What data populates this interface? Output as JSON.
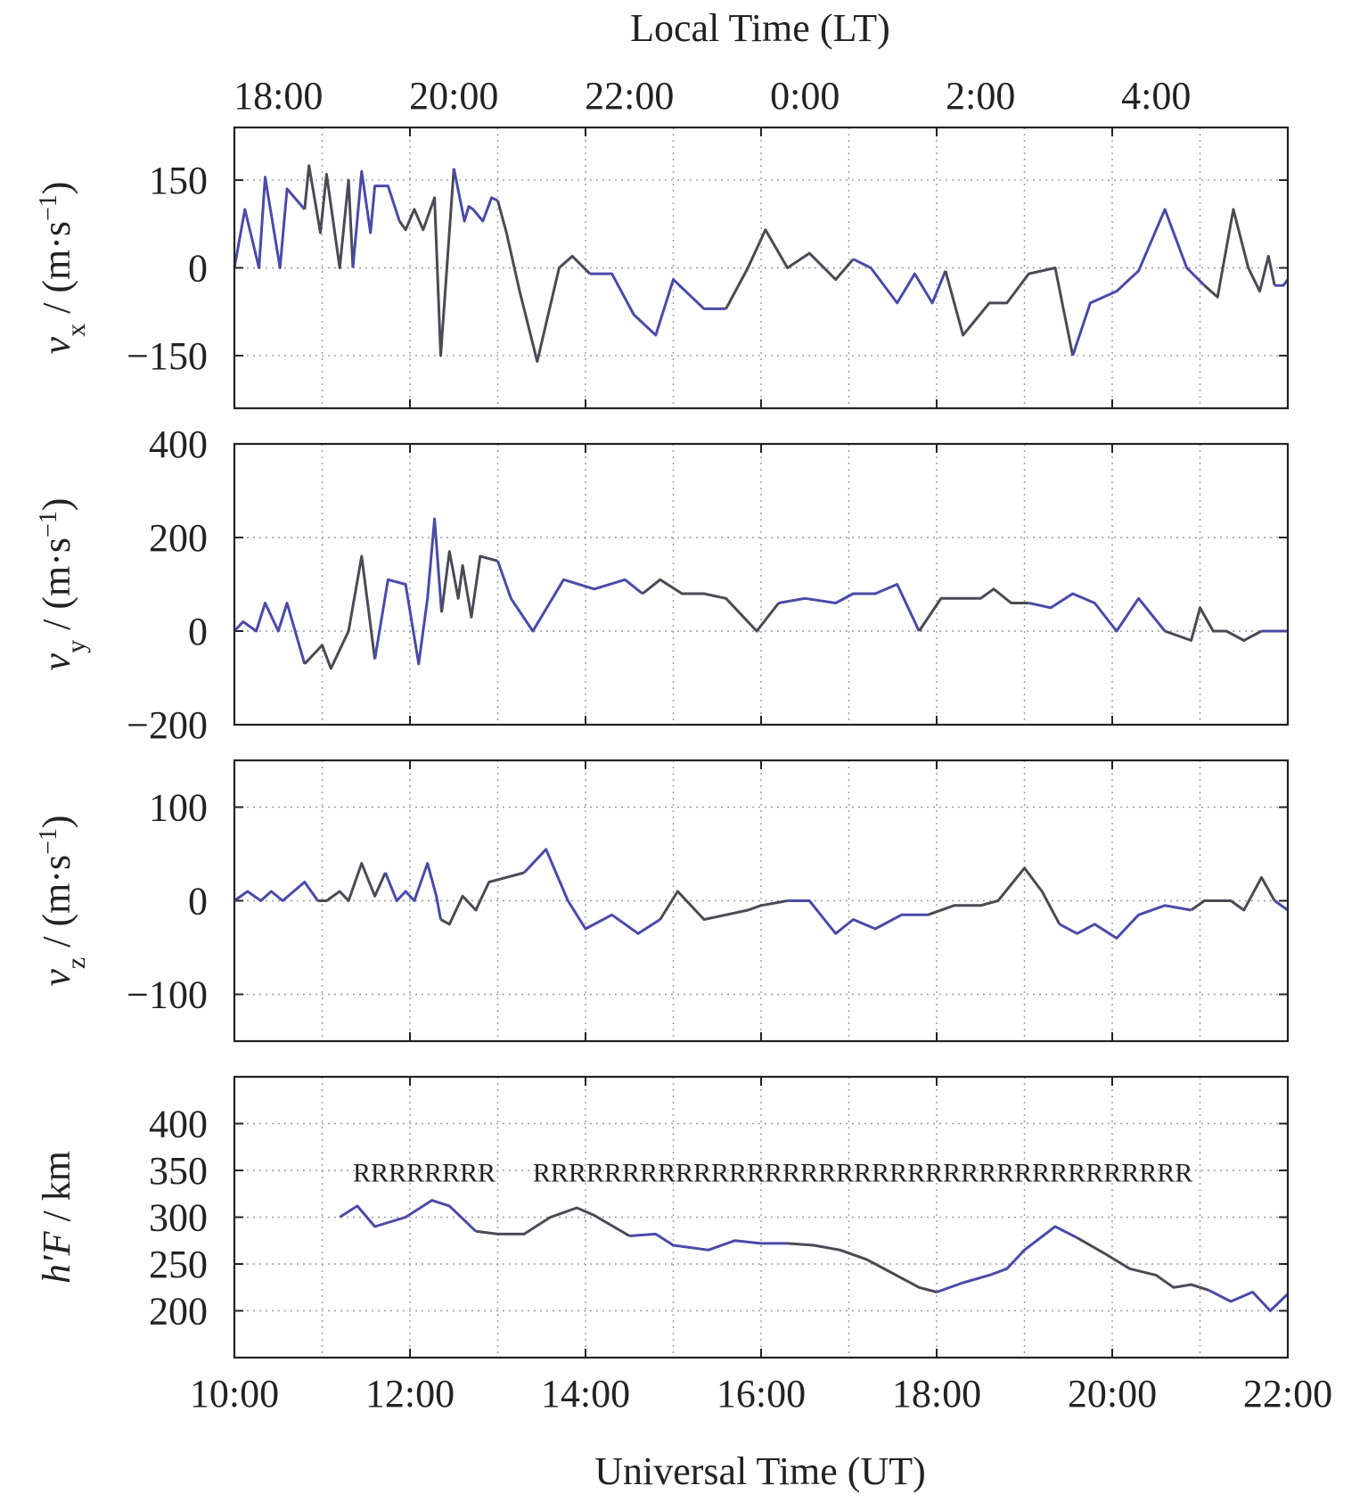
{
  "chart_data": {
    "type": "line",
    "top_axis_title": "Local Time (LT)",
    "top_tick_labels": [
      "18:00",
      "20:00",
      "22:00",
      "0:00",
      "2:00",
      "4:00"
    ],
    "bottom_axis_title": "Universal Time (UT)",
    "bottom_tick_labels": [
      "10:00",
      "12:00",
      "14:00",
      "16:00",
      "18:00",
      "20:00",
      "22:00"
    ],
    "xlim": [
      10,
      22
    ],
    "grid": true,
    "line_colors": [
      "#4a4aa8",
      "#4a4a55"
    ],
    "panels": [
      {
        "id": "vx",
        "ylabel_var": "v",
        "ylabel_sub": "x",
        "ylabel_units_pre": " / (m·s",
        "ylabel_units_sup": "−1",
        "ylabel_units_post": ")",
        "ylim": [
          -240,
          240
        ],
        "yticks": [
          -150,
          0,
          150
        ],
        "ytick_labels": [
          "−150",
          "0",
          "150"
        ],
        "x": [
          10.0,
          10.12,
          10.28,
          10.35,
          10.52,
          10.6,
          10.8,
          10.85,
          10.98,
          11.05,
          11.2,
          11.3,
          11.35,
          11.45,
          11.55,
          11.6,
          11.7,
          11.75,
          11.88,
          11.95,
          12.05,
          12.15,
          12.28,
          12.35,
          12.5,
          12.62,
          12.67,
          12.72,
          12.83,
          12.93,
          13.0,
          13.1,
          13.25,
          13.45,
          13.7,
          13.85,
          14.05,
          14.3,
          14.55,
          14.8,
          15.0,
          15.35,
          15.6,
          15.85,
          16.05,
          16.3,
          16.55,
          16.85,
          17.05,
          17.25,
          17.35,
          17.55,
          17.75,
          17.95,
          18.1,
          18.3,
          18.6,
          18.8,
          19.05,
          19.35,
          19.55,
          19.75,
          20.05,
          20.3,
          20.6,
          20.85,
          21.05,
          21.2,
          21.38,
          21.55,
          21.68,
          21.78,
          21.85,
          21.95,
          22.0
        ],
        "y": [
          0,
          100,
          0,
          155,
          0,
          135,
          100,
          175,
          60,
          160,
          0,
          150,
          0,
          165,
          60,
          140,
          140,
          140,
          80,
          65,
          100,
          65,
          120,
          -150,
          170,
          80,
          105,
          100,
          80,
          120,
          115,
          60,
          -40,
          -160,
          0,
          20,
          -10,
          -10,
          -80,
          -115,
          -20,
          -70,
          -70,
          0,
          65,
          0,
          25,
          -20,
          15,
          0,
          -20,
          -60,
          -10,
          -60,
          -5,
          -115,
          -60,
          -60,
          -10,
          0,
          -150,
          -60,
          -40,
          -5,
          100,
          0,
          -30,
          -50,
          100,
          0,
          -40,
          20,
          -30,
          -30,
          -20
        ]
      },
      {
        "id": "vy",
        "ylabel_var": "v",
        "ylabel_sub": "y",
        "ylabel_units_pre": " / (m·s",
        "ylabel_units_sup": "−1",
        "ylabel_units_post": ")",
        "ylim": [
          -200,
          400
        ],
        "yticks": [
          -200,
          0,
          200,
          400
        ],
        "ytick_labels": [
          "−200",
          "0",
          "200",
          "400"
        ],
        "x": [
          10.0,
          10.1,
          10.25,
          10.35,
          10.5,
          10.6,
          10.8,
          10.95,
          11.0,
          11.1,
          11.3,
          11.45,
          11.6,
          11.75,
          11.95,
          12.1,
          12.2,
          12.28,
          12.36,
          12.45,
          12.55,
          12.6,
          12.7,
          12.8,
          13.0,
          13.15,
          13.4,
          13.75,
          14.1,
          14.45,
          14.65,
          14.85,
          15.1,
          15.35,
          15.6,
          15.95,
          16.2,
          16.5,
          16.85,
          17.05,
          17.3,
          17.55,
          17.8,
          18.05,
          18.3,
          18.5,
          18.65,
          18.85,
          19.05,
          19.3,
          19.55,
          19.8,
          20.05,
          20.3,
          20.6,
          20.9,
          21.0,
          21.15,
          21.3,
          21.5,
          21.7,
          21.85,
          22.0
        ],
        "y": [
          0,
          20,
          0,
          60,
          0,
          60,
          -70,
          -40,
          -30,
          -80,
          0,
          160,
          -60,
          110,
          100,
          -70,
          70,
          240,
          40,
          170,
          70,
          140,
          30,
          160,
          150,
          70,
          0,
          110,
          90,
          110,
          80,
          110,
          80,
          80,
          70,
          0,
          60,
          70,
          60,
          80,
          80,
          100,
          0,
          70,
          70,
          70,
          90,
          60,
          60,
          50,
          80,
          60,
          0,
          70,
          0,
          -20,
          50,
          0,
          0,
          -20,
          0,
          0,
          0
        ]
      },
      {
        "id": "vz",
        "ylabel_var": "v",
        "ylabel_sub": "z",
        "ylabel_units_pre": " / (m·s",
        "ylabel_units_sup": "−1",
        "ylabel_units_post": ")",
        "ylim": [
          -150,
          150
        ],
        "yticks": [
          -100,
          0,
          100
        ],
        "ytick_labels": [
          "−100",
          "0",
          "100"
        ],
        "x": [
          10.0,
          10.15,
          10.3,
          10.42,
          10.55,
          10.8,
          10.95,
          11.05,
          11.2,
          11.3,
          11.45,
          11.6,
          11.72,
          11.85,
          11.95,
          12.05,
          12.2,
          12.3,
          12.35,
          12.45,
          12.6,
          12.75,
          12.9,
          13.1,
          13.3,
          13.55,
          13.8,
          14.0,
          14.3,
          14.6,
          14.85,
          15.05,
          15.35,
          15.6,
          15.85,
          16.0,
          16.3,
          16.55,
          16.85,
          17.05,
          17.3,
          17.6,
          17.9,
          18.2,
          18.5,
          18.7,
          19.0,
          19.2,
          19.4,
          19.6,
          19.8,
          20.05,
          20.3,
          20.6,
          20.9,
          21.05,
          21.2,
          21.35,
          21.5,
          21.7,
          21.85,
          22.0
        ],
        "y": [
          0,
          10,
          0,
          10,
          0,
          20,
          0,
          0,
          10,
          0,
          40,
          5,
          30,
          0,
          10,
          0,
          40,
          5,
          -20,
          -25,
          5,
          -10,
          20,
          25,
          30,
          55,
          0,
          -30,
          -15,
          -35,
          -20,
          10,
          -20,
          -15,
          -10,
          -5,
          0,
          0,
          -35,
          -20,
          -30,
          -15,
          -15,
          -5,
          -5,
          0,
          35,
          10,
          -25,
          -35,
          -25,
          -40,
          -15,
          -5,
          -10,
          0,
          0,
          0,
          -10,
          25,
          0,
          -10
        ]
      },
      {
        "id": "hF",
        "ylabel_var": "h′F",
        "ylabel_sub": "",
        "ylabel_units_pre": " / km",
        "ylabel_units_sup": "",
        "ylabel_units_post": "",
        "ylim": [
          150,
          450
        ],
        "yticks": [
          200,
          250,
          300,
          350,
          400
        ],
        "ytick_labels": [
          "200",
          "250",
          "300",
          "350",
          "400"
        ],
        "x": [
          11.2,
          11.4,
          11.6,
          11.95,
          12.25,
          12.45,
          12.75,
          13.0,
          13.3,
          13.6,
          13.9,
          14.1,
          14.5,
          14.8,
          15.0,
          15.4,
          15.7,
          16.0,
          16.3,
          16.6,
          16.9,
          17.2,
          17.5,
          17.8,
          18.0,
          18.3,
          18.6,
          18.8,
          19.0,
          19.35,
          19.6,
          19.9,
          20.2,
          20.5,
          20.7,
          20.9,
          21.1,
          21.35,
          21.6,
          21.8,
          22.0
        ],
        "y": [
          300,
          312,
          290,
          300,
          318,
          312,
          285,
          282,
          282,
          300,
          310,
          302,
          280,
          282,
          270,
          265,
          275,
          272,
          272,
          270,
          265,
          255,
          240,
          225,
          220,
          230,
          238,
          245,
          265,
          290,
          278,
          262,
          245,
          238,
          225,
          228,
          222,
          210,
          220,
          200,
          218
        ]
      }
    ],
    "annotations": [
      {
        "panel": "hF",
        "text": "RRRRRRRR",
        "x": 11.35,
        "y": 338
      },
      {
        "panel": "hF",
        "text": "RRRRRRRRRRRRRRRRRRRRRRRRRRRRRRRRRRRRR",
        "x": 13.4,
        "y": 338
      }
    ]
  }
}
